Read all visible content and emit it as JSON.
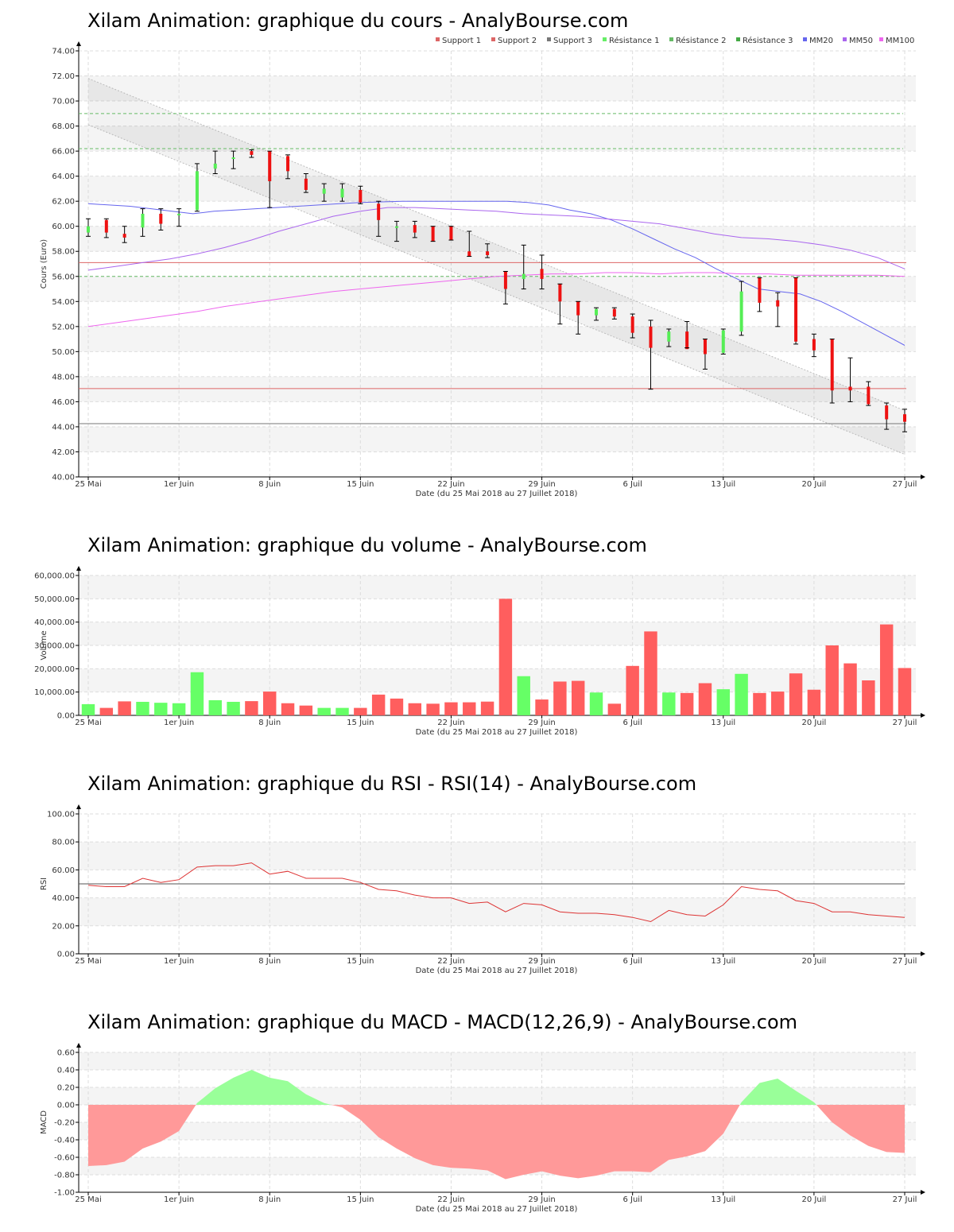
{
  "colors": {
    "up": "#55ee55",
    "down": "#ee1111",
    "vol_up": "#66ff66",
    "vol_down": "#ff5e5e",
    "band_fill": "#f4f4f4",
    "grid": "#dddddd",
    "support": "#dd6666",
    "support3": "#777777",
    "resistance": "#66bb66",
    "mm20": "#6666ee",
    "mm50": "#aa66ee",
    "mm100": "#ee66ee",
    "rsi": "#dd3333",
    "macd_pos": "#99ff99",
    "macd_neg": "#ff9999",
    "channel": "#bbbbbb"
  },
  "x_ticks": [
    "25 Mai",
    "1er Juin",
    "8 Juin",
    "15 Juin",
    "22 Juin",
    "29 Juin",
    "6 Juil",
    "13 Juil",
    "20 Juil",
    "27 Juil"
  ],
  "x_label": "Date (du 25 Mai 2018 au 27 Juillet 2018)",
  "chart_data": [
    {
      "id": "price",
      "type": "candlestick",
      "title": "Xilam Animation: graphique du cours - AnalyBourse.com",
      "ylabel": "Cours (Euro)",
      "xlabel": "Date (du 25 Mai 2018 au 27 Juillet 2018)",
      "ylim": [
        40,
        74
      ],
      "yticks": [
        "40.00",
        "42.00",
        "44.00",
        "46.00",
        "48.00",
        "50.00",
        "52.00",
        "54.00",
        "56.00",
        "58.00",
        "60.00",
        "62.00",
        "64.00",
        "66.00",
        "68.00",
        "70.00",
        "72.00",
        "74.00"
      ],
      "legend": [
        "Support 1",
        "Support 2",
        "Support 3",
        "Résistance 1",
        "Résistance 2",
        "Résistance 3",
        "MM20",
        "MM50",
        "MM100"
      ],
      "legend_position": "top-right",
      "candles": [
        {
          "o": 59.5,
          "h": 60.6,
          "l": 59.2,
          "c": 60.0
        },
        {
          "o": 60.5,
          "h": 60.6,
          "l": 59.1,
          "c": 59.5
        },
        {
          "o": 59.4,
          "h": 60.0,
          "l": 58.7,
          "c": 59.1
        },
        {
          "o": 59.9,
          "h": 61.4,
          "l": 59.2,
          "c": 61.0
        },
        {
          "o": 61.0,
          "h": 61.4,
          "l": 59.7,
          "c": 60.2
        },
        {
          "o": 61.0,
          "h": 61.4,
          "l": 60.0,
          "c": 61.0
        },
        {
          "o": 61.3,
          "h": 65.0,
          "l": 61.2,
          "c": 64.4
        },
        {
          "o": 64.6,
          "h": 66.0,
          "l": 64.2,
          "c": 65.0
        },
        {
          "o": 65.5,
          "h": 66.0,
          "l": 64.6,
          "c": 65.5
        },
        {
          "o": 66.0,
          "h": 66.1,
          "l": 65.5,
          "c": 65.7
        },
        {
          "o": 66.0,
          "h": 66.0,
          "l": 61.5,
          "c": 63.6
        },
        {
          "o": 65.6,
          "h": 65.7,
          "l": 63.8,
          "c": 64.4
        },
        {
          "o": 63.8,
          "h": 64.2,
          "l": 62.7,
          "c": 62.9
        },
        {
          "o": 62.6,
          "h": 63.4,
          "l": 62.0,
          "c": 63.0
        },
        {
          "o": 62.3,
          "h": 63.4,
          "l": 62.0,
          "c": 63.0
        },
        {
          "o": 62.9,
          "h": 63.2,
          "l": 61.8,
          "c": 61.9
        },
        {
          "o": 61.8,
          "h": 62.0,
          "l": 59.2,
          "c": 60.5
        },
        {
          "o": 60.0,
          "h": 60.4,
          "l": 58.8,
          "c": 60.0
        },
        {
          "o": 60.1,
          "h": 60.4,
          "l": 59.1,
          "c": 59.5
        },
        {
          "o": 60.0,
          "h": 60.0,
          "l": 58.8,
          "c": 58.8
        },
        {
          "o": 60.0,
          "h": 60.0,
          "l": 58.9,
          "c": 58.9
        },
        {
          "o": 58.0,
          "h": 59.6,
          "l": 57.6,
          "c": 57.6
        },
        {
          "o": 58.0,
          "h": 58.6,
          "l": 57.5,
          "c": 57.7
        },
        {
          "o": 56.4,
          "h": 56.4,
          "l": 53.8,
          "c": 55.0
        },
        {
          "o": 55.8,
          "h": 58.5,
          "l": 55.0,
          "c": 56.2
        },
        {
          "o": 56.6,
          "h": 57.7,
          "l": 55.0,
          "c": 55.8
        },
        {
          "o": 55.4,
          "h": 55.4,
          "l": 52.2,
          "c": 54.0
        },
        {
          "o": 54.0,
          "h": 54.0,
          "l": 51.4,
          "c": 52.9
        },
        {
          "o": 52.9,
          "h": 53.5,
          "l": 52.5,
          "c": 53.4
        },
        {
          "o": 53.4,
          "h": 53.5,
          "l": 52.6,
          "c": 52.8
        },
        {
          "o": 52.8,
          "h": 53.0,
          "l": 51.1,
          "c": 51.5
        },
        {
          "o": 52.0,
          "h": 52.5,
          "l": 47.0,
          "c": 50.3
        },
        {
          "o": 50.8,
          "h": 51.8,
          "l": 50.4,
          "c": 51.6
        },
        {
          "o": 51.6,
          "h": 52.4,
          "l": 50.3,
          "c": 50.2
        },
        {
          "o": 51.0,
          "h": 51.0,
          "l": 48.6,
          "c": 49.8
        },
        {
          "o": 49.9,
          "h": 51.8,
          "l": 49.8,
          "c": 51.7
        },
        {
          "o": 51.6,
          "h": 55.6,
          "l": 51.3,
          "c": 54.8
        },
        {
          "o": 55.9,
          "h": 55.9,
          "l": 53.2,
          "c": 53.9
        },
        {
          "o": 54.1,
          "h": 54.7,
          "l": 52.0,
          "c": 53.6
        },
        {
          "o": 55.9,
          "h": 55.9,
          "l": 50.6,
          "c": 50.8
        },
        {
          "o": 51.0,
          "h": 51.4,
          "l": 49.6,
          "c": 50.1
        },
        {
          "o": 51.0,
          "h": 51.0,
          "l": 45.9,
          "c": 46.9
        },
        {
          "o": 47.2,
          "h": 49.5,
          "l": 46.0,
          "c": 46.9
        },
        {
          "o": 47.2,
          "h": 47.6,
          "l": 45.7,
          "c": 45.8
        },
        {
          "o": 45.7,
          "h": 45.9,
          "l": 43.8,
          "c": 44.6
        },
        {
          "o": 45.0,
          "h": 45.4,
          "l": 43.6,
          "c": 44.4
        }
      ],
      "levels": {
        "support_1": 47.05,
        "support_2": 57.1,
        "support_3": 44.25,
        "resistance_1": 56.0,
        "resistance_2": 66.2,
        "resistance_3": 69.0
      },
      "channel": {
        "upper": [
          71.8,
          45.3
        ],
        "lower": [
          68.1,
          41.8
        ]
      },
      "series": [
        {
          "name": "MM20",
          "values": [
            61.8,
            61.7,
            61.6,
            61.4,
            61.2,
            61.0,
            61.2,
            61.3,
            61.4,
            61.5,
            61.6,
            61.7,
            61.8,
            61.9,
            61.95,
            62.0,
            62.0,
            62.0,
            62.0,
            62.0,
            62.0,
            61.9,
            61.7,
            61.3,
            61.0,
            60.5,
            59.8,
            59.0,
            58.2,
            57.5,
            56.6,
            55.8,
            55.0,
            54.8,
            54.6,
            54.0,
            53.2,
            52.3,
            51.4,
            50.5
          ]
        },
        {
          "name": "MM50",
          "values": [
            56.5,
            56.8,
            57.1,
            57.4,
            57.8,
            58.3,
            58.9,
            59.6,
            60.2,
            60.8,
            61.2,
            61.5,
            61.5,
            61.4,
            61.3,
            61.2,
            61.0,
            60.9,
            60.8,
            60.6,
            60.4,
            60.2,
            59.8,
            59.4,
            59.1,
            59.0,
            58.8,
            58.5,
            58.1,
            57.5,
            56.6
          ]
        },
        {
          "name": "MM100",
          "values": [
            52.0,
            52.3,
            52.6,
            52.9,
            53.2,
            53.6,
            53.9,
            54.2,
            54.5,
            54.8,
            55.0,
            55.2,
            55.4,
            55.6,
            55.8,
            56.0,
            56.1,
            56.2,
            56.2,
            56.3,
            56.3,
            56.2,
            56.3,
            56.3,
            56.2,
            56.2,
            56.1,
            56.1,
            56.1,
            56.1,
            56.0
          ]
        }
      ]
    },
    {
      "id": "volume",
      "type": "bar",
      "title": "Xilam Animation: graphique du volume - AnalyBourse.com",
      "ylabel": "Volume",
      "xlabel": "Date (du 25 Mai 2018 au 27 Juillet 2018)",
      "ylim": [
        0,
        60000
      ],
      "yticks": [
        "0.00",
        "10,000.00",
        "20,000.00",
        "30,000.00",
        "40,000.00",
        "50,000.00",
        "60,000.00"
      ],
      "values": [
        4800,
        3200,
        6000,
        5800,
        5400,
        5200,
        18500,
        6500,
        5800,
        6100,
        10200,
        5200,
        4200,
        3200,
        3200,
        3200,
        8900,
        7200,
        5200,
        5000,
        5600,
        5600,
        5900,
        50000,
        16800,
        6800,
        14500,
        14800,
        9800,
        5000,
        21200,
        36000,
        9800,
        9600,
        13800,
        11200,
        17800,
        9600,
        10200,
        18000,
        11000,
        30000,
        22300,
        15000,
        39000,
        20300
      ],
      "up": [
        true,
        false,
        false,
        true,
        true,
        true,
        true,
        true,
        true,
        false,
        false,
        false,
        false,
        true,
        true,
        false,
        false,
        false,
        false,
        false,
        false,
        false,
        false,
        false,
        true,
        false,
        false,
        false,
        true,
        false,
        false,
        false,
        true,
        false,
        false,
        true,
        true,
        false,
        false,
        false,
        false,
        false,
        false,
        false,
        false,
        false
      ]
    },
    {
      "id": "rsi",
      "type": "line",
      "title": "Xilam Animation: graphique du RSI - RSI(14) - AnalyBourse.com",
      "ylabel": "RSI",
      "xlabel": "Date (du 25 Mai 2018 au 27 Juillet 2018)",
      "ylim": [
        0,
        100
      ],
      "yticks": [
        "0.00",
        "20.00",
        "40.00",
        "60.00",
        "80.00",
        "100.00"
      ],
      "reference": 50,
      "values": [
        49,
        48,
        48,
        54,
        51,
        53,
        62,
        63,
        63,
        65,
        57,
        59,
        54,
        54,
        54,
        51,
        46,
        45,
        42,
        40,
        40,
        36,
        37,
        30,
        36,
        35,
        30,
        29,
        29,
        28,
        26,
        23,
        31,
        28,
        27,
        35,
        48,
        46,
        45,
        38,
        36,
        30,
        30,
        28,
        27,
        26
      ]
    },
    {
      "id": "macd",
      "type": "area",
      "title": "Xilam Animation: graphique du MACD - MACD(12,26,9) - AnalyBourse.com",
      "ylabel": "MACD",
      "xlabel": "Date (du 25 Mai 2018 au 27 Juillet 2018)",
      "ylim": [
        -1.0,
        0.6
      ],
      "yticks": [
        "-1.00",
        "-0.80",
        "-0.60",
        "-0.40",
        "-0.20",
        "0.00",
        "0.20",
        "0.40",
        "0.60"
      ],
      "values": [
        -0.7,
        -0.69,
        -0.65,
        -0.5,
        -0.42,
        -0.3,
        0.02,
        0.19,
        0.31,
        0.4,
        0.31,
        0.27,
        0.12,
        0.02,
        -0.03,
        -0.17,
        -0.37,
        -0.5,
        -0.61,
        -0.69,
        -0.72,
        -0.73,
        -0.75,
        -0.85,
        -0.8,
        -0.76,
        -0.81,
        -0.84,
        -0.81,
        -0.76,
        -0.76,
        -0.77,
        -0.63,
        -0.59,
        -0.53,
        -0.33,
        0.03,
        0.25,
        0.3,
        0.16,
        0.03,
        -0.2,
        -0.35,
        -0.47,
        -0.54,
        -0.55
      ]
    }
  ]
}
